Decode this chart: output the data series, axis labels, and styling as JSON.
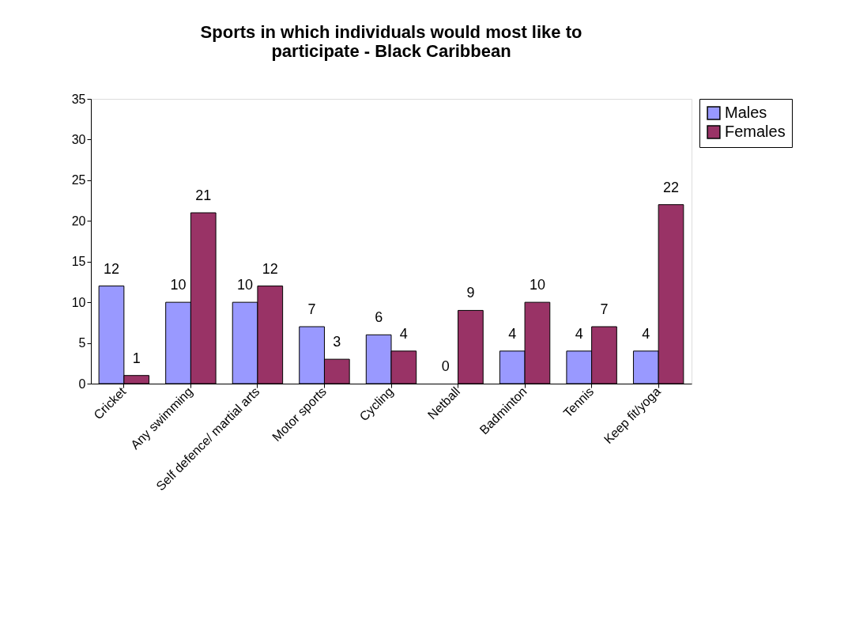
{
  "chart_data": {
    "type": "bar",
    "title": "Sports in which individuals would most like to participate - Black Caribbean",
    "categories": [
      "Cricket",
      "Any swimming",
      "Self defence/ martial arts",
      "Motor sports",
      "Cycling",
      "Netball",
      "Badminton",
      "Tennis",
      "Keep fit/yoga"
    ],
    "series": [
      {
        "name": "Males",
        "color": "#9999ff",
        "values": [
          12,
          10,
          10,
          7,
          6,
          0,
          4,
          4,
          4
        ]
      },
      {
        "name": "Females",
        "color": "#993366",
        "values": [
          1,
          21,
          12,
          3,
          4,
          9,
          10,
          7,
          22
        ]
      }
    ],
    "ylim": [
      0,
      35
    ],
    "yticks": [
      0,
      5,
      10,
      15,
      20,
      25,
      30,
      35
    ],
    "grid": false,
    "legend": "right",
    "data_labels": true
  }
}
